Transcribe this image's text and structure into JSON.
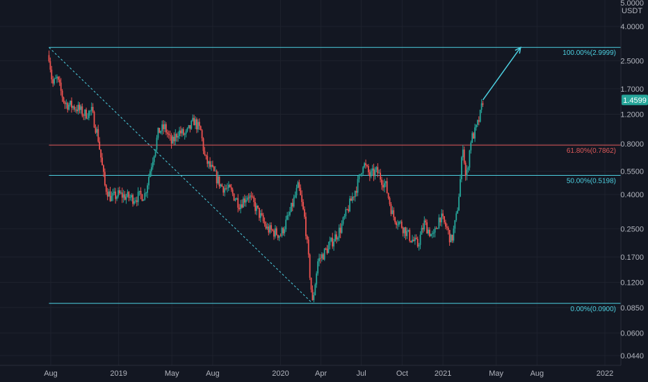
{
  "colors": {
    "background": "#131722",
    "grid": "#1e222d",
    "axis_text": "#b2b5be",
    "up_candle": "#26a69a",
    "down_candle": "#ef5350",
    "fib_cyan": "#4dd0e1",
    "fib_red": "#e05a5a",
    "price_badge": "#26a69a"
  },
  "axis": {
    "y_unit_top": "5.0000",
    "y_unit": "USDT",
    "y_scale": "log"
  },
  "chart_data": {
    "type": "candlestick",
    "title": "",
    "y_scale": "log",
    "y_ticks": [
      "4.0000",
      "2.5000",
      "1.7000",
      "1.2000",
      "0.8000",
      "0.5500",
      "0.4000",
      "0.2500",
      "0.1700",
      "0.1200",
      "0.0850",
      "0.0600",
      "0.0440"
    ],
    "x_ticks": [
      "Aug",
      "2019",
      "May",
      "Aug",
      "2020",
      "Apr",
      "Jul",
      "Oct",
      "2021",
      "May",
      "Aug",
      "2022"
    ],
    "x_tick_dates": [
      "2018-08-01",
      "2019-01-01",
      "2019-05-01",
      "2019-08-01",
      "2020-01-01",
      "2020-04-01",
      "2020-07-01",
      "2020-10-01",
      "2021-01-01",
      "2021-05-01",
      "2021-08-01",
      "2022-01-01"
    ],
    "last_price": "1.4599",
    "price_path": [
      [
        "2018-07-28",
        2.7
      ],
      [
        "2018-08-05",
        1.8
      ],
      [
        "2018-08-15",
        1.95
      ],
      [
        "2018-09-01",
        1.4
      ],
      [
        "2018-10-01",
        1.3
      ],
      [
        "2018-10-15",
        1.2
      ],
      [
        "2018-11-01",
        1.25
      ],
      [
        "2018-11-15",
        0.9
      ],
      [
        "2018-12-01",
        0.45
      ],
      [
        "2018-12-15",
        0.38
      ],
      [
        "2019-01-01",
        0.4
      ],
      [
        "2019-02-01",
        0.38
      ],
      [
        "2019-03-01",
        0.4
      ],
      [
        "2019-04-01",
        0.95
      ],
      [
        "2019-04-15",
        1.0
      ],
      [
        "2019-05-01",
        0.8
      ],
      [
        "2019-05-15",
        0.95
      ],
      [
        "2019-06-01",
        0.9
      ],
      [
        "2019-06-20",
        1.1
      ],
      [
        "2019-07-05",
        0.95
      ],
      [
        "2019-07-15",
        0.65
      ],
      [
        "2019-08-01",
        0.55
      ],
      [
        "2019-08-20",
        0.45
      ],
      [
        "2019-09-10",
        0.42
      ],
      [
        "2019-10-01",
        0.35
      ],
      [
        "2019-10-20",
        0.4
      ],
      [
        "2019-11-10",
        0.32
      ],
      [
        "2019-12-01",
        0.25
      ],
      [
        "2020-01-01",
        0.23
      ],
      [
        "2020-01-20",
        0.3
      ],
      [
        "2020-02-10",
        0.45
      ],
      [
        "2020-02-25",
        0.28
      ],
      [
        "2020-03-13",
        0.09
      ],
      [
        "2020-03-25",
        0.16
      ],
      [
        "2020-04-15",
        0.19
      ],
      [
        "2020-05-15",
        0.25
      ],
      [
        "2020-06-10",
        0.38
      ],
      [
        "2020-06-25",
        0.48
      ],
      [
        "2020-07-05",
        0.62
      ],
      [
        "2020-07-20",
        0.52
      ],
      [
        "2020-08-05",
        0.55
      ],
      [
        "2020-08-25",
        0.45
      ],
      [
        "2020-09-10",
        0.3
      ],
      [
        "2020-10-01",
        0.26
      ],
      [
        "2020-10-20",
        0.22
      ],
      [
        "2020-11-05",
        0.2
      ],
      [
        "2020-11-20",
        0.27
      ],
      [
        "2020-12-10",
        0.22
      ],
      [
        "2020-12-25",
        0.3
      ],
      [
        "2021-01-10",
        0.25
      ],
      [
        "2021-01-20",
        0.21
      ],
      [
        "2021-02-01",
        0.3
      ],
      [
        "2021-02-08",
        0.45
      ],
      [
        "2021-02-15",
        0.8
      ],
      [
        "2021-02-22",
        0.48
      ],
      [
        "2021-03-05",
        0.85
      ],
      [
        "2021-03-15",
        0.95
      ],
      [
        "2021-03-25",
        1.15
      ],
      [
        "2021-04-01",
        1.46
      ]
    ],
    "fib_levels": [
      {
        "label": "100.00%(2.9999)",
        "value": 2.9999,
        "color": "#4dd0e1"
      },
      {
        "label": "61.80%(0.7862)",
        "value": 0.7862,
        "color": "#e05a5a"
      },
      {
        "label": "50.00%(0.5198)",
        "value": 0.5198,
        "color": "#4dd0e1"
      },
      {
        "label": "0.00%(0.0900)",
        "value": 0.09,
        "color": "#4dd0e1"
      }
    ],
    "fib_range_dates": [
      "2018-07-28",
      "2021-08-01"
    ],
    "trend_line": [
      [
        "2018-07-28",
        2.9999
      ],
      [
        "2020-03-13",
        0.09
      ]
    ],
    "projection_arrow": [
      [
        "2021-04-01",
        1.46
      ],
      [
        "2021-06-25",
        2.9999
      ]
    ]
  }
}
